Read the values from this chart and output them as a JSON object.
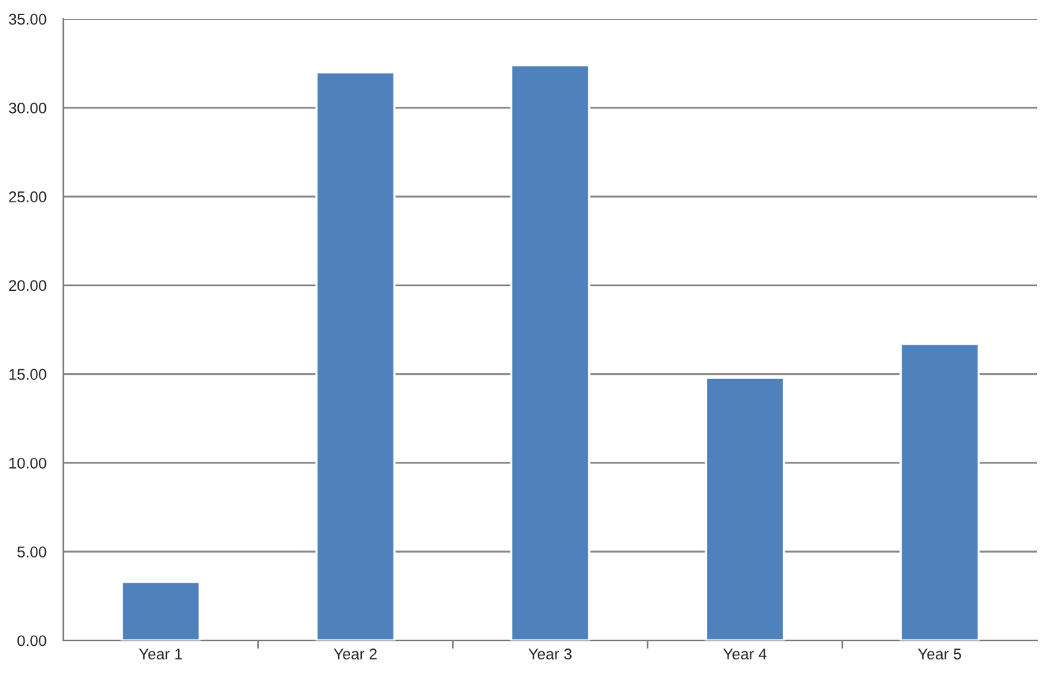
{
  "chart_data": {
    "type": "bar",
    "categories": [
      "Year 1",
      "Year 2",
      "Year 3",
      "Year 4",
      "Year 5"
    ],
    "values": [
      3.3,
      32.0,
      32.4,
      14.8,
      16.7
    ],
    "color": "#4f81bd",
    "ylim": [
      0,
      35
    ],
    "yticks": [
      {
        "value": 0,
        "label": "0.00"
      },
      {
        "value": 5,
        "label": "5.00"
      },
      {
        "value": 10,
        "label": "10.00"
      },
      {
        "value": 15,
        "label": "15.00"
      },
      {
        "value": 20,
        "label": "20.00"
      },
      {
        "value": 25,
        "label": "25.00"
      },
      {
        "value": 30,
        "label": "30.00"
      },
      {
        "value": 35,
        "label": "35.00"
      }
    ],
    "grid": "y",
    "legend": false
  }
}
